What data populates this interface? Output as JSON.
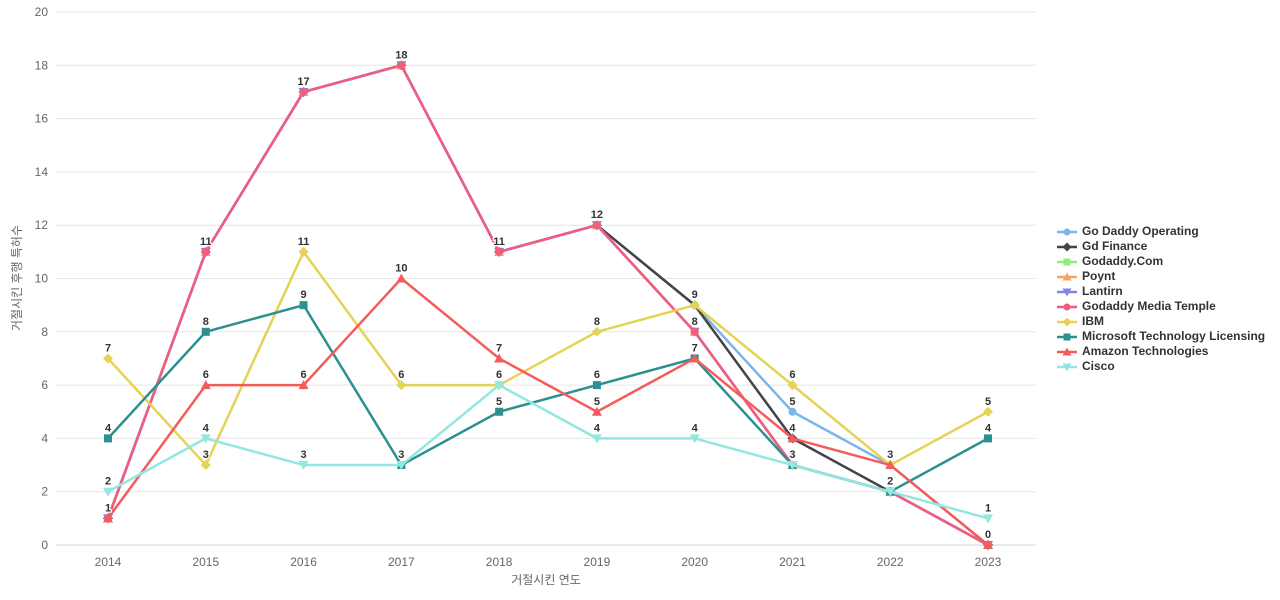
{
  "chart_data": {
    "type": "line",
    "title": "",
    "xlabel": "거절시킨 연도",
    "ylabel": "거절시킨 후행 특허수",
    "categories": [
      "2014",
      "2015",
      "2016",
      "2017",
      "2018",
      "2019",
      "2020",
      "2021",
      "2022",
      "2023"
    ],
    "ylim": [
      0,
      20
    ],
    "ytick_step": 2,
    "grid": "horizontal",
    "legend_position": "right",
    "series": [
      {
        "name": "Go Daddy Operating",
        "color": "#7cb5ec",
        "marker": "circle",
        "values": [
          1,
          11,
          17,
          18,
          11,
          12,
          9,
          5,
          3,
          0
        ]
      },
      {
        "name": "Gd Finance",
        "color": "#434348",
        "marker": "diamond",
        "values": [
          1,
          11,
          17,
          18,
          11,
          12,
          9,
          4,
          2,
          0
        ]
      },
      {
        "name": "Godaddy.Com",
        "color": "#90ed7d",
        "marker": "square",
        "values": [
          1,
          11,
          17,
          18,
          11,
          12,
          8,
          3,
          2,
          0
        ]
      },
      {
        "name": "Poynt",
        "color": "#f7a35c",
        "marker": "triangle",
        "values": [
          1,
          11,
          17,
          18,
          11,
          12,
          8,
          3,
          2,
          0
        ]
      },
      {
        "name": "Lantirn",
        "color": "#8085e9",
        "marker": "triangle-down",
        "values": [
          1,
          11,
          17,
          18,
          11,
          12,
          8,
          3,
          2,
          0
        ]
      },
      {
        "name": "Godaddy Media Temple",
        "color": "#f15c80",
        "marker": "circle",
        "values": [
          1,
          11,
          17,
          18,
          11,
          12,
          8,
          3,
          2,
          0
        ]
      },
      {
        "name": "IBM",
        "color": "#e4d354",
        "marker": "diamond",
        "values": [
          7,
          3,
          11,
          6,
          6,
          8,
          9,
          6,
          3,
          5
        ]
      },
      {
        "name": "Microsoft Technology Licensing",
        "color": "#2b908f",
        "marker": "square",
        "values": [
          4,
          8,
          9,
          3,
          5,
          6,
          7,
          3,
          2,
          4
        ]
      },
      {
        "name": "Amazon Technologies",
        "color": "#f45b5b",
        "marker": "triangle",
        "values": [
          1,
          6,
          6,
          10,
          7,
          5,
          7,
          4,
          3,
          0
        ]
      },
      {
        "name": "Cisco",
        "color": "#91e8e1",
        "marker": "triangle-down",
        "values": [
          2,
          4,
          3,
          3,
          6,
          4,
          4,
          3,
          2,
          1
        ]
      }
    ],
    "axis_colors": {
      "grid": "#e6e6e6",
      "axis_line": "#ccd6eb",
      "tick_label": "#666666",
      "axis_title": "#666666",
      "data_label": "#333333"
    }
  }
}
